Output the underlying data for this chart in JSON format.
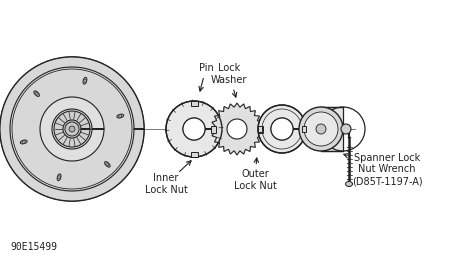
{
  "bg_color": "#f5f5f5",
  "line_color": "#222222",
  "labels": {
    "inner_lock_nut": "Inner\nLock Nut",
    "outer_lock_nut": "Outer\nLock Nut",
    "spanner_lock": "Spanner Lock\nNut Wrench\n(D85T-1197-A)",
    "pin": "Pin",
    "lock_washer": "Lock\nWasher"
  },
  "part_id": "90E15499",
  "fig_width": 4.5,
  "fig_height": 2.67,
  "dpi": 100
}
